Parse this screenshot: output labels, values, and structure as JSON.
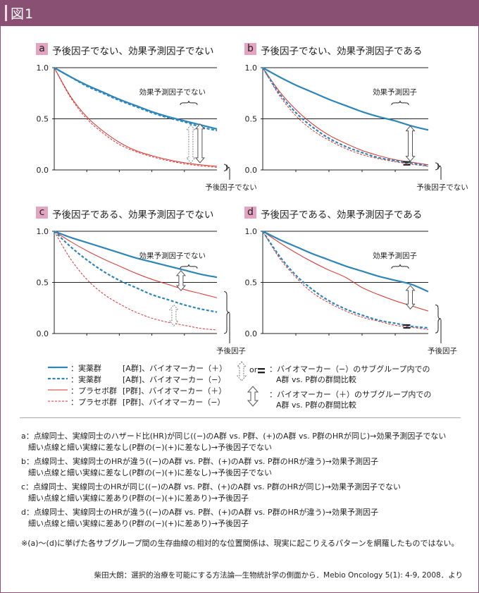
{
  "header": {
    "title": "図1"
  },
  "colors": {
    "header_bg": "#8a5073",
    "tag_bg": "#e3a4c2",
    "blue": "#2e86b8",
    "red": "#d9302c",
    "grid": "#222222"
  },
  "panels": [
    {
      "tag": "a",
      "title": "予後因子でない、効果予測因子でない",
      "effect_label": "効果予測因子でない",
      "prognostic_label": "予後因子でない"
    },
    {
      "tag": "b",
      "title": "予後因子でない、効果予測因子である",
      "effect_label": "効果予測因子",
      "prognostic_label": "予後因子でない"
    },
    {
      "tag": "c",
      "title": "予後因子である、効果予測因子でない",
      "effect_label": "効果予測因子でない",
      "prognostic_label": "予後因子"
    },
    {
      "tag": "d",
      "title": "予後因子である、効果予測因子である",
      "effect_label": "効果予測因子",
      "prognostic_label": "予後因子"
    }
  ],
  "chart_data": [
    {
      "type": "line",
      "title": "予後因子でない、効果予測因子でない",
      "ylim": [
        0,
        1
      ],
      "yticks": [
        "1.0",
        "0.5",
        "0.0"
      ],
      "x": [
        0,
        1,
        2,
        3,
        4,
        5,
        6,
        7,
        8,
        9,
        10
      ],
      "series": [
        {
          "name": "実薬群 [A群]、バイオマーカー（＋）",
          "values": [
            1.0,
            0.91,
            0.83,
            0.76,
            0.69,
            0.63,
            0.57,
            0.52,
            0.48,
            0.44,
            0.4
          ]
        },
        {
          "name": "実薬群 [A群]、バイオマーカー（−）",
          "values": [
            1.0,
            0.91,
            0.82,
            0.75,
            0.68,
            0.62,
            0.56,
            0.51,
            0.47,
            0.42,
            0.385
          ]
        },
        {
          "name": "プラセボ群 [P群]、バイオマーカー（＋）",
          "values": [
            1.0,
            0.72,
            0.52,
            0.38,
            0.27,
            0.19,
            0.14,
            0.1,
            0.07,
            0.05,
            0.035
          ]
        },
        {
          "name": "プラセボ群 [P群]、バイオマーカー（−）",
          "values": [
            1.0,
            0.71,
            0.5,
            0.36,
            0.25,
            0.18,
            0.13,
            0.09,
            0.06,
            0.04,
            0.025
          ]
        }
      ]
    },
    {
      "type": "line",
      "title": "予後因子でない、効果予測因子である",
      "ylim": [
        0,
        1
      ],
      "yticks": [
        "1.0",
        "0.5",
        "0.0"
      ],
      "x": [
        0,
        1,
        2,
        3,
        4,
        5,
        6,
        7,
        8,
        9,
        10
      ],
      "series": [
        {
          "name": "実薬群 [A群]、バイオマーカー（＋）",
          "values": [
            1.0,
            0.91,
            0.83,
            0.76,
            0.69,
            0.63,
            0.57,
            0.52,
            0.48,
            0.43,
            0.39
          ]
        },
        {
          "name": "実薬群 [A群]、バイオマーカー（−）",
          "values": [
            1.0,
            0.75,
            0.56,
            0.42,
            0.31,
            0.23,
            0.17,
            0.12,
            0.09,
            0.065,
            0.04
          ]
        },
        {
          "name": "プラセボ群 [P群]、バイオマーカー（＋）",
          "values": [
            1.0,
            0.77,
            0.59,
            0.45,
            0.34,
            0.26,
            0.19,
            0.14,
            0.1,
            0.075,
            0.05
          ]
        },
        {
          "name": "プラセボ群 [P群]、バイオマーカー（−）",
          "values": [
            1.0,
            0.73,
            0.53,
            0.39,
            0.29,
            0.21,
            0.15,
            0.11,
            0.08,
            0.055,
            0.035
          ]
        }
      ]
    },
    {
      "type": "line",
      "title": "予後因子である、効果予測因子でない",
      "ylim": [
        0,
        1
      ],
      "yticks": [
        "1.0",
        "0.5",
        "0.0"
      ],
      "x": [
        0,
        1,
        2,
        3,
        4,
        5,
        6,
        7,
        8,
        9,
        10
      ],
      "series": [
        {
          "name": "実薬群 [A群]、バイオマーカー（＋）",
          "values": [
            1.0,
            0.94,
            0.89,
            0.84,
            0.79,
            0.74,
            0.7,
            0.66,
            0.62,
            0.58,
            0.55
          ]
        },
        {
          "name": "実薬群 [A群]、バイオマーカー（−）",
          "values": [
            1.0,
            0.85,
            0.72,
            0.61,
            0.52,
            0.45,
            0.38,
            0.33,
            0.28,
            0.24,
            0.21
          ]
        },
        {
          "name": "プラセボ群 [P群]、バイオマーカー（＋）",
          "values": [
            1.0,
            0.9,
            0.81,
            0.73,
            0.66,
            0.59,
            0.53,
            0.48,
            0.43,
            0.39,
            0.35
          ]
        },
        {
          "name": "プラセボ群 [P群]、バイオマーカー（−）",
          "values": [
            1.0,
            0.73,
            0.53,
            0.39,
            0.29,
            0.21,
            0.15,
            0.11,
            0.08,
            0.05,
            0.035
          ]
        }
      ]
    },
    {
      "type": "line",
      "title": "予後因子である、効果予測因子である",
      "ylim": [
        0,
        1
      ],
      "yticks": [
        "1.0",
        "0.5",
        "0.0"
      ],
      "x": [
        0,
        1,
        2,
        3,
        4,
        5,
        6,
        7,
        8,
        9,
        10
      ],
      "series": [
        {
          "name": "実薬群 [A群]、バイオマーカー（＋）",
          "values": [
            1.0,
            0.92,
            0.85,
            0.78,
            0.72,
            0.66,
            0.61,
            0.56,
            0.52,
            0.48,
            0.41
          ]
        },
        {
          "name": "実薬群 [A群]、バイオマーカー（−）",
          "values": [
            1.0,
            0.76,
            0.57,
            0.43,
            0.32,
            0.24,
            0.18,
            0.13,
            0.1,
            0.07,
            0.055
          ]
        },
        {
          "name": "プラセボ群 [P群]、バイオマーカー（＋）",
          "values": [
            1.0,
            0.89,
            0.79,
            0.7,
            0.62,
            0.55,
            0.45,
            0.38,
            0.32,
            0.27,
            0.22
          ]
        },
        {
          "name": "プラセボ群 [P群]、バイオマーカー（−）",
          "values": [
            1.0,
            0.74,
            0.55,
            0.4,
            0.3,
            0.22,
            0.16,
            0.12,
            0.08,
            0.06,
            0.04
          ]
        }
      ]
    }
  ],
  "legend": {
    "items": [
      {
        "group": "：実薬群",
        "desc": "[A群]、バイオマーカー（＋）"
      },
      {
        "group": "：実薬群",
        "desc": "[A群]、バイオマーカー（−）"
      },
      {
        "group": "：プラセボ群",
        "desc": "[P群]、バイオマーカー（＋）"
      },
      {
        "group": "：プラセボ群",
        "desc": "[P群]、バイオマーカー（−）"
      }
    ],
    "or_text": "or",
    "arrow_neg_line1": "：バイオマーカー（−）のサブグループ内での",
    "arrow_neg_line2": "A群 vs. P群の群間比較",
    "arrow_pos_line1": "：バイオマーカー（＋）のサブグループ内での",
    "arrow_pos_line2": "A群 vs. P群の群間比較"
  },
  "notes": [
    {
      "line1": "a：点線同士、実線同士のハザード比(HR)が同じ((−)のA群 vs. P群、(+)のA群 vs. P群のHRが同じ)→効果予測因子でない",
      "line2": "細い点線と細い実線に差なし(P群の(−)(+)に差なし)→予後因子でない"
    },
    {
      "line1": "b：点線同士、実線同士のHRが違う((−)のA群 vs. P群、(+)のA群 vs. P群のHRが違う)→効果予測因子",
      "line2": "細い点線と細い実線に差なし(P群の(−)(+)に差なし)→予後因子でない"
    },
    {
      "line1": "c：点線同士、実線同士のHRが同じ((−)のA群 vs. P群、(+)のA群 vs. P群のHRが同じ)→効果予測因子でない",
      "line2": "細い点線と細い実線に差あり(P群の(−)(+)に差あり)→予後因子"
    },
    {
      "line1": "d：点線同士、実線同士のHRが違う((−)のA群 vs. P群、(+)のA群 vs. P群のHRが違う)→効果予測因子",
      "line2": "細い点線と細い実線に差あり(P群の(−)(+)に差あり)→予後因子"
    }
  ],
  "disclaimer": "※(a)〜(d)に挙げた各サブグループ間の生存曲線の相対的な位置関係は、現実に起こりえるパターンを網羅したものではない。",
  "source": "柴田大朗：選択的治療を可能にする方法論―生物統計学の側面から．Mebio Oncology 5(1): 4-9, 2008．より"
}
